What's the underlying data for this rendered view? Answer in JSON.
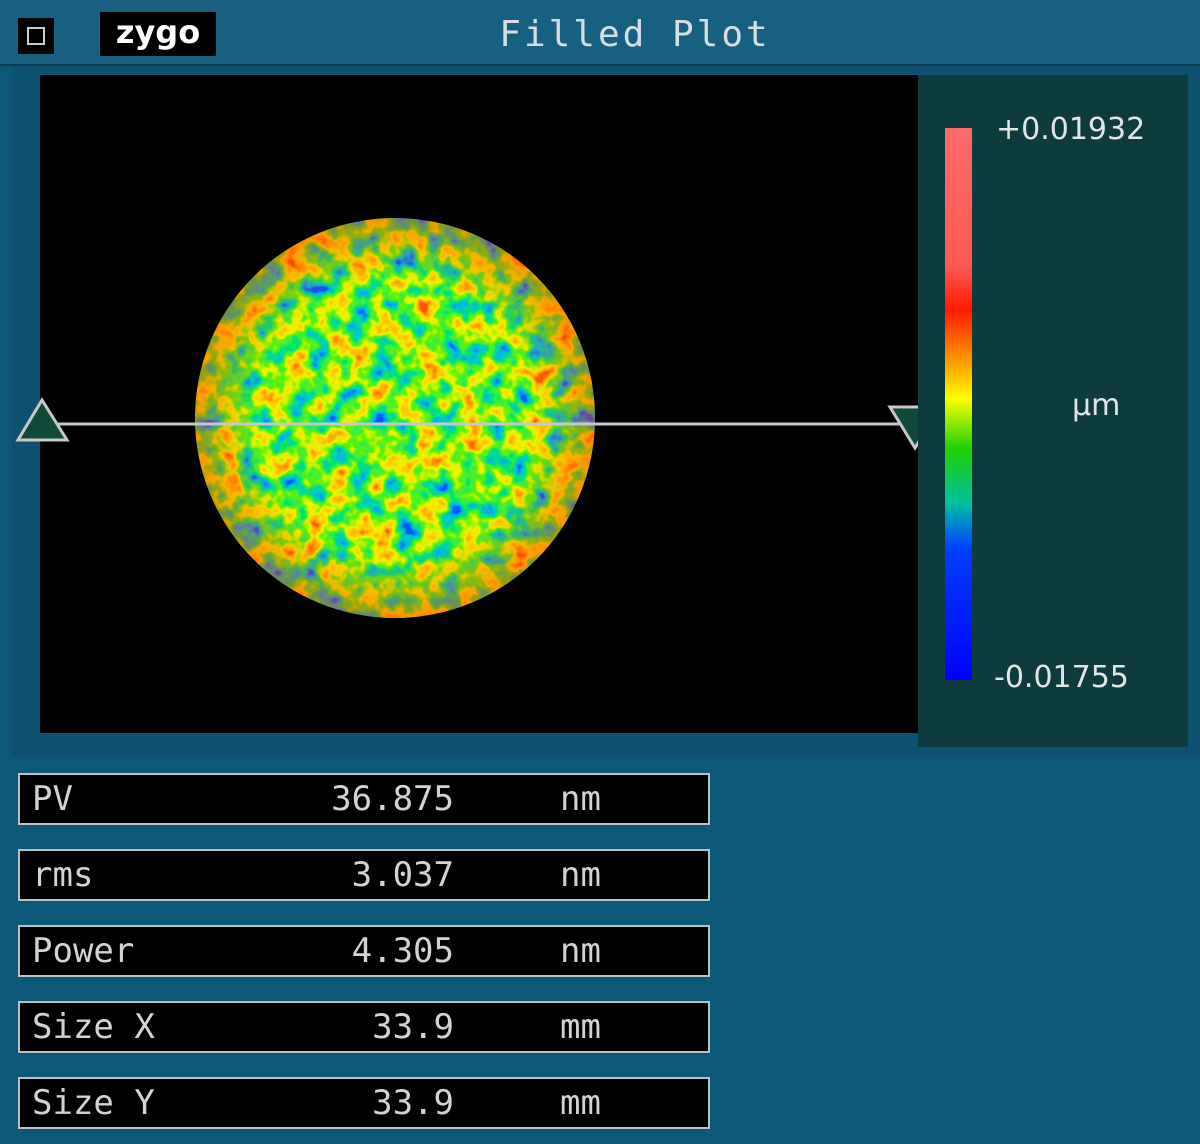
{
  "window": {
    "logo": "zygo",
    "title": "Filled Plot"
  },
  "colorbar": {
    "max_label": "+0.01932",
    "min_label": "-0.01755",
    "unit": "µm"
  },
  "results": [
    {
      "label": "PV",
      "value": "36.875",
      "unit": "nm"
    },
    {
      "label": "rms",
      "value": "3.037",
      "unit": "nm"
    },
    {
      "label": "Power",
      "value": "4.305",
      "unit": "nm"
    },
    {
      "label": "Size X",
      "value": "33.9",
      "unit": "mm"
    },
    {
      "label": "Size Y",
      "value": "33.9",
      "unit": "mm"
    }
  ]
}
